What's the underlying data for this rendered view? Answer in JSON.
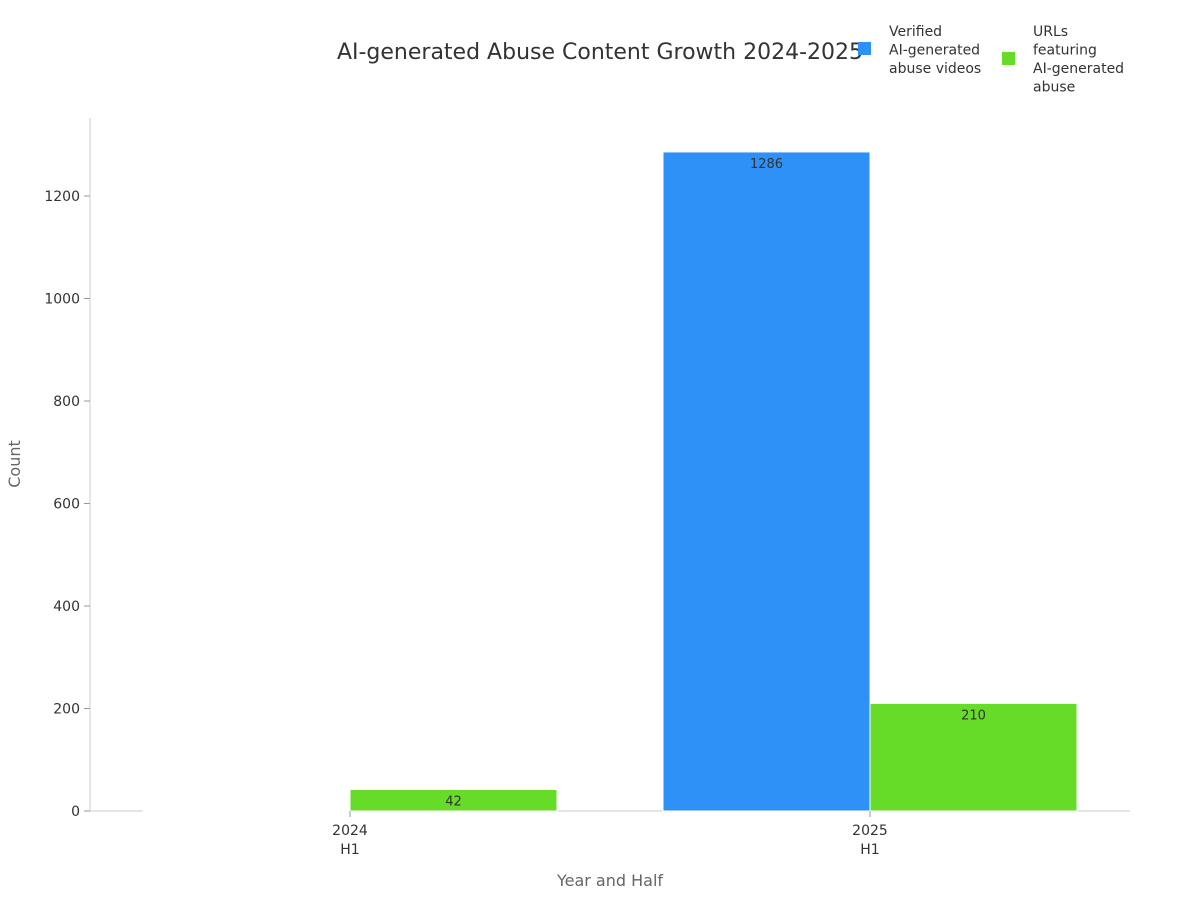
{
  "chart_data": {
    "type": "bar",
    "title": "AI-generated Abuse Content Growth 2024-2025",
    "xlabel": "Year and Half",
    "ylabel": "Count",
    "categories": [
      [
        "2024",
        "H1"
      ],
      [
        "2025",
        "H1"
      ]
    ],
    "series": [
      {
        "name": "Verified AI-generated abuse videos",
        "name_lines": [
          "Verified",
          "AI-generated",
          "abuse videos"
        ],
        "values": [
          2,
          1286
        ],
        "labels": [
          "",
          "1286"
        ],
        "color": "#2e91f8"
      },
      {
        "name": "URLs featuring AI-generated abuse",
        "name_lines": [
          "URLs",
          "featuring",
          "AI-generated",
          "abuse"
        ],
        "values": [
          42,
          210
        ],
        "labels": [
          "42",
          "210"
        ],
        "color": "#66dc28"
      }
    ],
    "ylim": [
      0,
      1360
    ],
    "yticks": [
      0,
      200,
      400,
      600,
      800,
      1000,
      1200
    ],
    "grid": false,
    "legend": "top-right"
  }
}
